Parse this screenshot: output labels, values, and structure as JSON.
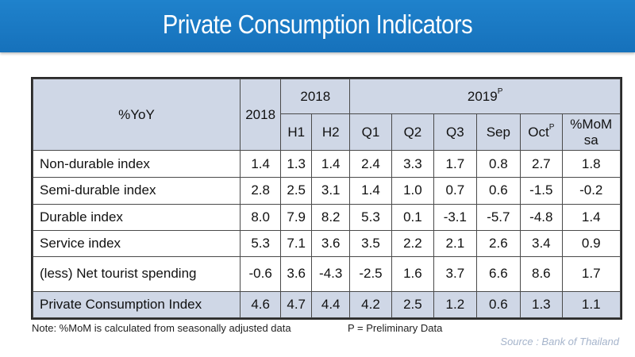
{
  "title": "Private Consumption Indicators",
  "colors": {
    "title_bg": "#1671bb",
    "header_bg": "#cfd7e6",
    "source_text": "#a5b4cb"
  },
  "table": {
    "corner_label": "%YoY",
    "col_2018_total": "2018",
    "group_2018": "2018",
    "group_2019": "2019",
    "group_2019_sup": "P",
    "subheaders": [
      "H1",
      "H2",
      "Q1",
      "Q2",
      "Q3",
      "Sep",
      "Oct"
    ],
    "oct_sup": "P",
    "mom_label_line1": "%MoM",
    "mom_label_line2": "sa",
    "rows": [
      {
        "label": "Non-durable index",
        "values": [
          "1.4",
          "1.3",
          "1.4",
          "2.4",
          "3.3",
          "1.7",
          "0.8",
          "2.7",
          "1.8"
        ]
      },
      {
        "label": "Semi-durable index",
        "values": [
          "2.8",
          "2.5",
          "3.1",
          "1.4",
          "1.0",
          "0.7",
          "0.6",
          "-1.5",
          "-0.2"
        ]
      },
      {
        "label": "Durable index",
        "values": [
          "8.0",
          "7.9",
          "8.2",
          "5.3",
          "0.1",
          "-3.1",
          "-5.7",
          "-4.8",
          "1.4"
        ]
      },
      {
        "label": "Service index",
        "values": [
          "5.3",
          "7.1",
          "3.6",
          "3.5",
          "2.2",
          "2.1",
          "2.6",
          "3.4",
          "0.9"
        ]
      },
      {
        "label": "(less) Net tourist spending",
        "values": [
          "-0.6",
          "3.6",
          "-4.3",
          "-2.5",
          "1.6",
          "3.7",
          "6.6",
          "8.6",
          "1.7"
        ]
      },
      {
        "label": "Private Consumption Index",
        "values": [
          "4.6",
          "4.7",
          "4.4",
          "4.2",
          "2.5",
          "1.2",
          "0.6",
          "1.3",
          "1.1"
        ]
      }
    ]
  },
  "note": "Note: %MoM is calculated from seasonally adjusted data",
  "note_preliminary": "P = Preliminary Data",
  "source": "Source : Bank of Thailand"
}
